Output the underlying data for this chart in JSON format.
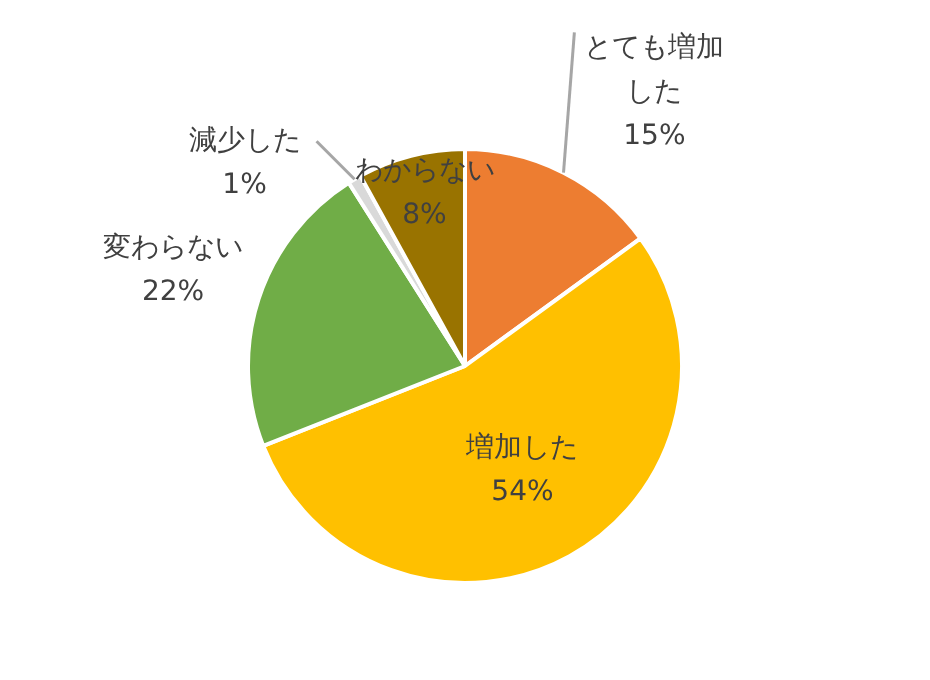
{
  "chart_data": {
    "type": "pie",
    "categories": [
      "とても増加した",
      "増加した",
      "変わらない",
      "減少した",
      "わからない"
    ],
    "values": [
      15,
      54,
      22,
      1,
      8
    ],
    "colors": [
      "#ed7d31",
      "#ffc000",
      "#70ad47",
      "#d9d9d9",
      "#997300"
    ],
    "value_labels": [
      "15%",
      "54%",
      "22%",
      "1%",
      "8%"
    ],
    "legend": false
  }
}
